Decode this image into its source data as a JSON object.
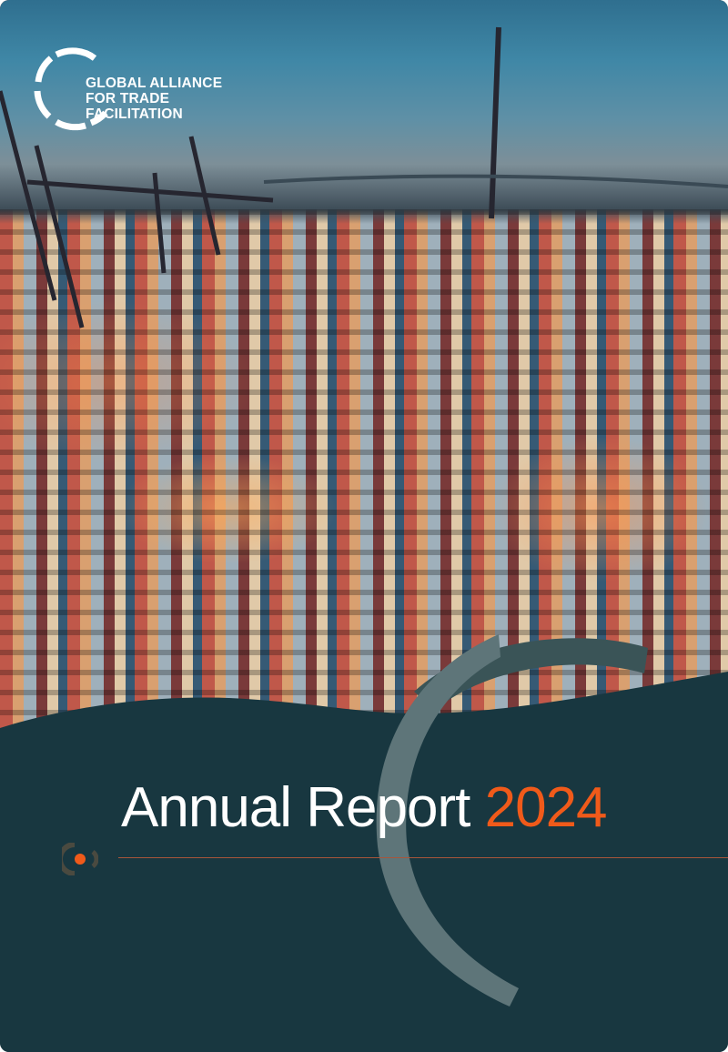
{
  "logo": {
    "line1": "GLOBAL ALLIANCE",
    "line2": "FOR TRADE FACILITATION"
  },
  "title": {
    "main": "Annual Report",
    "year": "2024"
  },
  "colors": {
    "background": "#183740",
    "accent": "#f05a1a",
    "arc": "#5e7579",
    "arc_dark": "#3a5457"
  },
  "icons": {
    "logo_mark": "segmented-ring-icon",
    "bullet": "orange-dot-ring-icon"
  }
}
